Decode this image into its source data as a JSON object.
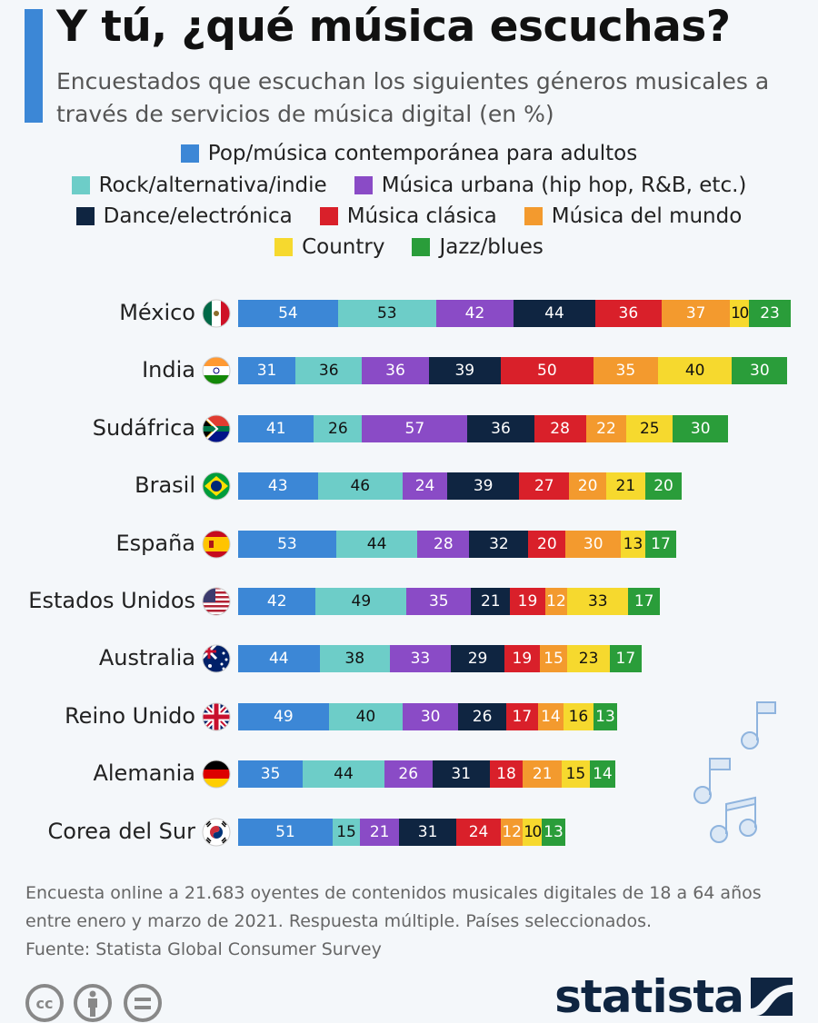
{
  "title": "Y tú, ¿qué música escuchas?",
  "subtitle": "Encuestados que escuchan los siguientes géneros musicales a través de servicios de música digital (en %)",
  "chart_data": {
    "type": "bar",
    "orientation": "horizontal",
    "stacked": true,
    "title": "Y tú, ¿qué música escuchas?",
    "subtitle": "Encuestados que escuchan los siguientes géneros musicales a través de servicios de música digital (en %)",
    "legend_position": "top",
    "grid": false,
    "categories": [
      "México",
      "India",
      "Sudáfrica",
      "Brasil",
      "España",
      "Estados Unidos",
      "Australia",
      "Reino Unido",
      "Alemania",
      "Corea del Sur"
    ],
    "series": [
      {
        "name": "Pop/música contemporánea para adultos",
        "color": "#3c87d6",
        "values": [
          54,
          31,
          41,
          43,
          53,
          42,
          44,
          49,
          35,
          51
        ]
      },
      {
        "name": "Rock/alternativa/indie",
        "color": "#6dcdc8",
        "values": [
          53,
          36,
          26,
          46,
          44,
          49,
          38,
          40,
          44,
          15
        ]
      },
      {
        "name": "Música urbana (hip hop, R&B, etc.)",
        "color": "#8a4bc6",
        "values": [
          42,
          36,
          57,
          24,
          28,
          35,
          33,
          30,
          26,
          21
        ]
      },
      {
        "name": "Dance/electrónica",
        "color": "#0f2541",
        "values": [
          44,
          39,
          36,
          39,
          32,
          21,
          29,
          26,
          31,
          31
        ]
      },
      {
        "name": "Música clásica",
        "color": "#d9202a",
        "values": [
          36,
          50,
          28,
          27,
          20,
          19,
          19,
          17,
          18,
          24
        ]
      },
      {
        "name": "Música del mundo",
        "color": "#f39a2e",
        "values": [
          37,
          35,
          22,
          20,
          30,
          12,
          15,
          14,
          21,
          12
        ]
      },
      {
        "name": "Country",
        "color": "#f6d92e",
        "values": [
          10,
          40,
          25,
          21,
          13,
          33,
          23,
          16,
          15,
          10
        ]
      },
      {
        "name": "Jazz/blues",
        "color": "#2a9d3a",
        "values": [
          23,
          30,
          30,
          20,
          17,
          17,
          17,
          13,
          14,
          13
        ]
      }
    ]
  },
  "legend_rows": [
    [
      0
    ],
    [
      1,
      2
    ],
    [
      3,
      4,
      5
    ],
    [
      6,
      7
    ]
  ],
  "footnote": [
    "Encuesta online a 21.683 oyentes de contenidos musicales digitales de 18 a 64 años",
    "entre enero y marzo de 2021. Respuesta múltiple. Países seleccionados.",
    "Fuente: Statista Global Consumer Survey"
  ],
  "brand": "statista",
  "icons": [
    "cc-icon",
    "attribution-icon",
    "no-derivatives-icon",
    "music-note-icon"
  ]
}
